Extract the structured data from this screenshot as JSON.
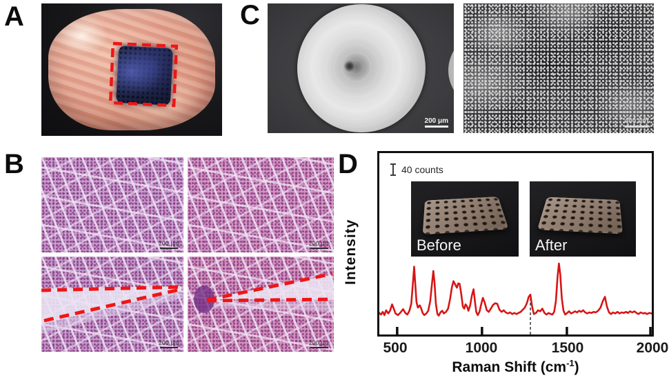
{
  "panels": {
    "a": {
      "label": "A"
    },
    "b": {
      "label": "B",
      "scale_bar": "200 μm"
    },
    "c": {
      "label": "C",
      "left_scale_bar": "200 μm",
      "right_scale_bar": "400 nm"
    },
    "d": {
      "label": "D",
      "counts_marker_label": "40 counts",
      "inset_before_label": "Before",
      "inset_after_label": "After"
    }
  },
  "chart_data": {
    "type": "line",
    "title": "",
    "xlabel_main": "Raman Shift (cm",
    "xlabel_sup": "-1",
    "xlabel_end": ")",
    "ylabel": "Intensity",
    "x_ticks": [
      "500",
      "1000",
      "1500",
      "2000"
    ],
    "xlim": [
      395,
      2000
    ],
    "ylim_note": "intensity in relative units 0-100, scale bar = 40 counts",
    "dashed_line_x": 1285,
    "line_color": "#d81414",
    "grid": false,
    "legend": "none",
    "points": [
      [
        395,
        8
      ],
      [
        405,
        5
      ],
      [
        415,
        10
      ],
      [
        425,
        4
      ],
      [
        435,
        13
      ],
      [
        448,
        7
      ],
      [
        458,
        12
      ],
      [
        470,
        24
      ],
      [
        480,
        16
      ],
      [
        490,
        7
      ],
      [
        505,
        4
      ],
      [
        520,
        9
      ],
      [
        535,
        15
      ],
      [
        548,
        8
      ],
      [
        560,
        5
      ],
      [
        572,
        12
      ],
      [
        583,
        25
      ],
      [
        592,
        60
      ],
      [
        600,
        94
      ],
      [
        607,
        60
      ],
      [
        614,
        28
      ],
      [
        622,
        18
      ],
      [
        633,
        22
      ],
      [
        641,
        17
      ],
      [
        650,
        8
      ],
      [
        660,
        4
      ],
      [
        672,
        7
      ],
      [
        683,
        12
      ],
      [
        695,
        30
      ],
      [
        705,
        62
      ],
      [
        713,
        86
      ],
      [
        720,
        65
      ],
      [
        728,
        25
      ],
      [
        737,
        6
      ],
      [
        745,
        3
      ],
      [
        755,
        9
      ],
      [
        765,
        12
      ],
      [
        775,
        7
      ],
      [
        788,
        10
      ],
      [
        800,
        16
      ],
      [
        812,
        34
      ],
      [
        822,
        55
      ],
      [
        832,
        67
      ],
      [
        843,
        60
      ],
      [
        852,
        55
      ],
      [
        860,
        63
      ],
      [
        868,
        62
      ],
      [
        877,
        45
      ],
      [
        887,
        20
      ],
      [
        895,
        16
      ],
      [
        903,
        24
      ],
      [
        912,
        20
      ],
      [
        920,
        12
      ],
      [
        930,
        22
      ],
      [
        940,
        40
      ],
      [
        950,
        52
      ],
      [
        958,
        30
      ],
      [
        966,
        10
      ],
      [
        975,
        4
      ],
      [
        985,
        10
      ],
      [
        995,
        24
      ],
      [
        1005,
        36
      ],
      [
        1015,
        28
      ],
      [
        1028,
        13
      ],
      [
        1040,
        10
      ],
      [
        1052,
        16
      ],
      [
        1065,
        23
      ],
      [
        1078,
        26
      ],
      [
        1090,
        25
      ],
      [
        1103,
        14
      ],
      [
        1115,
        10
      ],
      [
        1128,
        13
      ],
      [
        1140,
        9
      ],
      [
        1152,
        7
      ],
      [
        1165,
        9
      ],
      [
        1178,
        6
      ],
      [
        1190,
        8
      ],
      [
        1203,
        6
      ],
      [
        1215,
        8
      ],
      [
        1228,
        10
      ],
      [
        1240,
        14
      ],
      [
        1252,
        18
      ],
      [
        1264,
        26
      ],
      [
        1275,
        38
      ],
      [
        1285,
        42
      ],
      [
        1295,
        20
      ],
      [
        1305,
        6
      ],
      [
        1318,
        8
      ],
      [
        1330,
        13
      ],
      [
        1343,
        11
      ],
      [
        1355,
        16
      ],
      [
        1368,
        8
      ],
      [
        1380,
        5
      ],
      [
        1392,
        8
      ],
      [
        1404,
        6
      ],
      [
        1415,
        5
      ],
      [
        1425,
        10
      ],
      [
        1435,
        30
      ],
      [
        1445,
        75
      ],
      [
        1453,
        100
      ],
      [
        1461,
        80
      ],
      [
        1470,
        35
      ],
      [
        1480,
        12
      ],
      [
        1490,
        5
      ],
      [
        1502,
        8
      ],
      [
        1513,
        11
      ],
      [
        1525,
        7
      ],
      [
        1537,
        9
      ],
      [
        1548,
        11
      ],
      [
        1560,
        9
      ],
      [
        1572,
        12
      ],
      [
        1584,
        10
      ],
      [
        1596,
        13
      ],
      [
        1608,
        9
      ],
      [
        1620,
        7
      ],
      [
        1632,
        9
      ],
      [
        1645,
        8
      ],
      [
        1658,
        10
      ],
      [
        1670,
        9
      ],
      [
        1684,
        12
      ],
      [
        1698,
        18
      ],
      [
        1712,
        30
      ],
      [
        1724,
        38
      ],
      [
        1736,
        20
      ],
      [
        1748,
        9
      ],
      [
        1760,
        6
      ],
      [
        1772,
        9
      ],
      [
        1785,
        7
      ],
      [
        1798,
        10
      ],
      [
        1810,
        7
      ],
      [
        1822,
        9
      ],
      [
        1835,
        8
      ],
      [
        1848,
        10
      ],
      [
        1860,
        8
      ],
      [
        1872,
        11
      ],
      [
        1885,
        9
      ],
      [
        1898,
        11
      ],
      [
        1910,
        8
      ],
      [
        1922,
        6
      ],
      [
        1935,
        9
      ],
      [
        1948,
        7
      ],
      [
        1960,
        8
      ],
      [
        1972,
        6
      ],
      [
        1985,
        8
      ],
      [
        2000,
        7
      ]
    ]
  },
  "colors": {
    "spectrum_red": "#d81414",
    "annotation_red": "#ee1616",
    "axis_black": "#0e0e0e"
  }
}
